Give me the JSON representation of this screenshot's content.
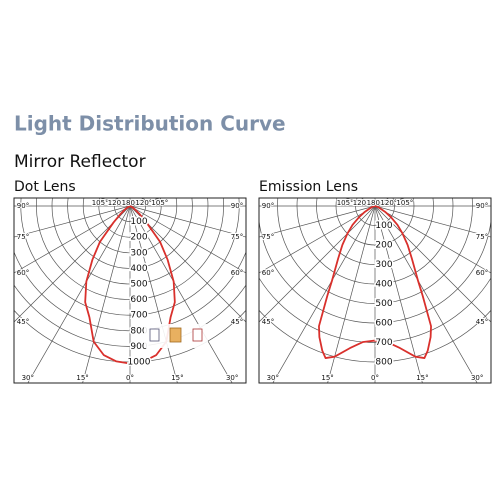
{
  "header": {
    "title": "Light Distribution Curve",
    "subtitle": "Mirror Reflector"
  },
  "chart_data": [
    {
      "type": "polar",
      "title": "Dot Lens",
      "rlim": [
        0,
        1000
      ],
      "rticks": [
        100,
        200,
        300,
        400,
        500,
        600,
        700,
        800,
        900,
        1000
      ],
      "angle_ticks": [
        {
          "value": -90,
          "label": "90°"
        },
        {
          "value": -105,
          "label": "105°"
        },
        {
          "value": -120,
          "label": "120°"
        },
        {
          "value": 180,
          "label": "180°"
        },
        {
          "value": 120,
          "label": "120°"
        },
        {
          "value": 105,
          "label": "105°"
        },
        {
          "value": 90,
          "label": "90°"
        },
        {
          "value": -75,
          "label": "75°"
        },
        {
          "value": 75,
          "label": "75°"
        },
        {
          "value": -60,
          "label": "60°"
        },
        {
          "value": 60,
          "label": "60°"
        },
        {
          "value": -45,
          "label": "45°"
        },
        {
          "value": 45,
          "label": "45°"
        },
        {
          "value": -30,
          "label": "30°"
        },
        {
          "value": -15,
          "label": "15°"
        },
        {
          "value": 0,
          "label": "0°"
        },
        {
          "value": 15,
          "label": "15°"
        },
        {
          "value": 30,
          "label": "30°"
        }
      ],
      "series": [
        {
          "color": "#d9302c",
          "x": [
            -70,
            -60,
            -55,
            -50,
            -45,
            -40,
            -35,
            -30,
            -25,
            -20,
            -15,
            -10,
            -5,
            0,
            5,
            10,
            15,
            20,
            25,
            30,
            35,
            40,
            45,
            50,
            55,
            60,
            70
          ],
          "values": [
            0,
            20,
            40,
            80,
            150,
            300,
            420,
            560,
            680,
            760,
            900,
            970,
            1000,
            1010,
            1000,
            970,
            900,
            760,
            680,
            560,
            420,
            300,
            150,
            80,
            40,
            20,
            0
          ]
        }
      ]
    },
    {
      "type": "polar",
      "title": "Emission Lens",
      "rlim": [
        0,
        800
      ],
      "rticks": [
        100,
        200,
        300,
        400,
        500,
        600,
        700,
        800
      ],
      "angle_ticks": [
        {
          "value": -90,
          "label": "90°"
        },
        {
          "value": -105,
          "label": "105°"
        },
        {
          "value": -120,
          "label": "120°"
        },
        {
          "value": 180,
          "label": "180°"
        },
        {
          "value": 120,
          "label": "120°"
        },
        {
          "value": 105,
          "label": "105°"
        },
        {
          "value": 90,
          "label": "90°"
        },
        {
          "value": -75,
          "label": "75°"
        },
        {
          "value": 75,
          "label": "75°"
        },
        {
          "value": -60,
          "label": "60°"
        },
        {
          "value": 60,
          "label": "60°"
        },
        {
          "value": -45,
          "label": "45°"
        },
        {
          "value": 45,
          "label": "45°"
        },
        {
          "value": -30,
          "label": "30°"
        },
        {
          "value": -15,
          "label": "15°"
        },
        {
          "value": 0,
          "label": "0°"
        },
        {
          "value": 15,
          "label": "15°"
        },
        {
          "value": 30,
          "label": "30°"
        }
      ],
      "series": [
        {
          "color": "#d9302c",
          "x": [
            -80,
            -70,
            -60,
            -55,
            -50,
            -45,
            -40,
            -35,
            -30,
            -28,
            -25,
            -23,
            -20,
            -18,
            -15,
            -10,
            -5,
            0,
            5,
            10,
            15,
            18,
            20,
            23,
            25,
            28,
            30,
            35,
            40,
            45,
            50,
            55,
            60,
            70,
            80
          ],
          "values": [
            0,
            20,
            60,
            100,
            150,
            200,
            260,
            330,
            440,
            520,
            680,
            730,
            790,
            820,
            800,
            740,
            700,
            690,
            700,
            740,
            800,
            820,
            790,
            730,
            680,
            520,
            440,
            330,
            260,
            200,
            150,
            100,
            60,
            20,
            0
          ]
        }
      ]
    }
  ]
}
